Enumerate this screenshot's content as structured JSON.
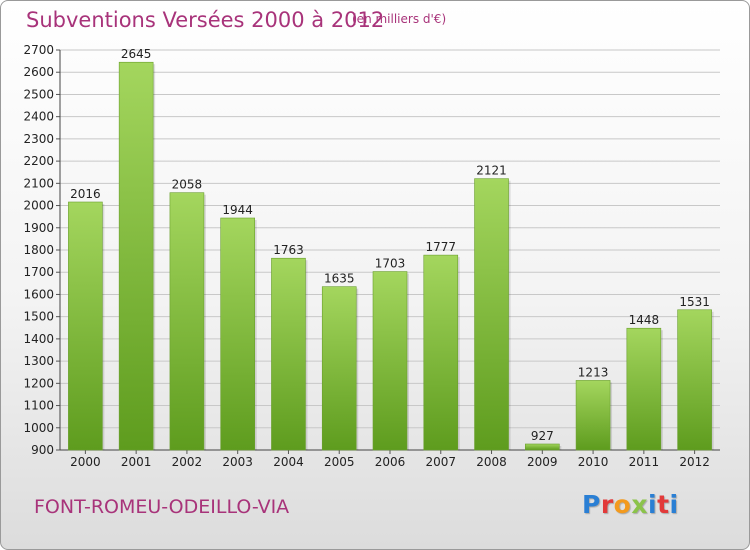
{
  "header": {
    "title": "Subventions Versées 2000 à 2012",
    "subtitle": "(en milliers d'€)"
  },
  "footer": {
    "commune": "FONT-ROMEU-ODEILLO-VIA",
    "logo_text": "Proxiti",
    "logo_colors": [
      "#2a7fd4",
      "#e23a3a",
      "#f39a1e",
      "#8bc34a",
      "#2a7fd4",
      "#e23a3a",
      "#2a7fd4"
    ]
  },
  "colors": {
    "title": "#a8337a",
    "bar_top": "#a4d65e",
    "bar_bottom": "#5e9c1e",
    "grid": "#c8c8c8"
  },
  "chart_data": {
    "type": "bar",
    "categories": [
      "2000",
      "2001",
      "2002",
      "2003",
      "2004",
      "2005",
      "2006",
      "2007",
      "2008",
      "2009",
      "2010",
      "2011",
      "2012"
    ],
    "values": [
      2016,
      2645,
      2058,
      1944,
      1763,
      1635,
      1703,
      1777,
      2121,
      927,
      1213,
      1448,
      1531
    ],
    "yticks": [
      900,
      1000,
      1100,
      1200,
      1300,
      1400,
      1500,
      1600,
      1700,
      1800,
      1900,
      2000,
      2100,
      2200,
      2300,
      2400,
      2500,
      2600,
      2700
    ],
    "ylim": [
      900,
      2700
    ],
    "title": "Subventions Versées 2000 à 2012",
    "grid": true
  }
}
